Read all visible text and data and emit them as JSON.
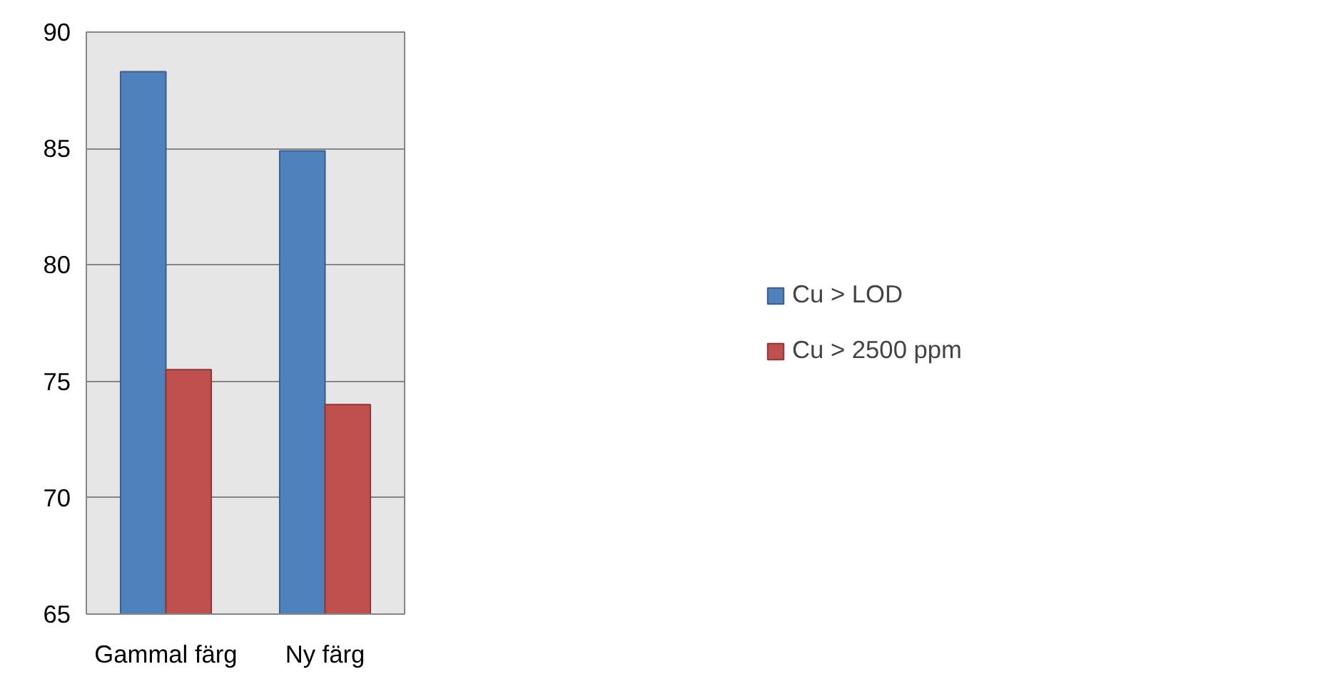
{
  "chart_data": {
    "type": "bar",
    "categories": [
      "Gammal färg",
      "Ny färg"
    ],
    "series": [
      {
        "name": "Cu > LOD",
        "color": "#4f81bd",
        "values": [
          88.3,
          84.9
        ]
      },
      {
        "name": "Cu > 2500 ppm",
        "color": "#c0504d",
        "values": [
          75.5,
          74.0
        ]
      }
    ],
    "ylim": [
      65,
      90
    ],
    "yticks": [
      65,
      70,
      75,
      80,
      85,
      90
    ],
    "grid": "y",
    "legend": "right"
  }
}
